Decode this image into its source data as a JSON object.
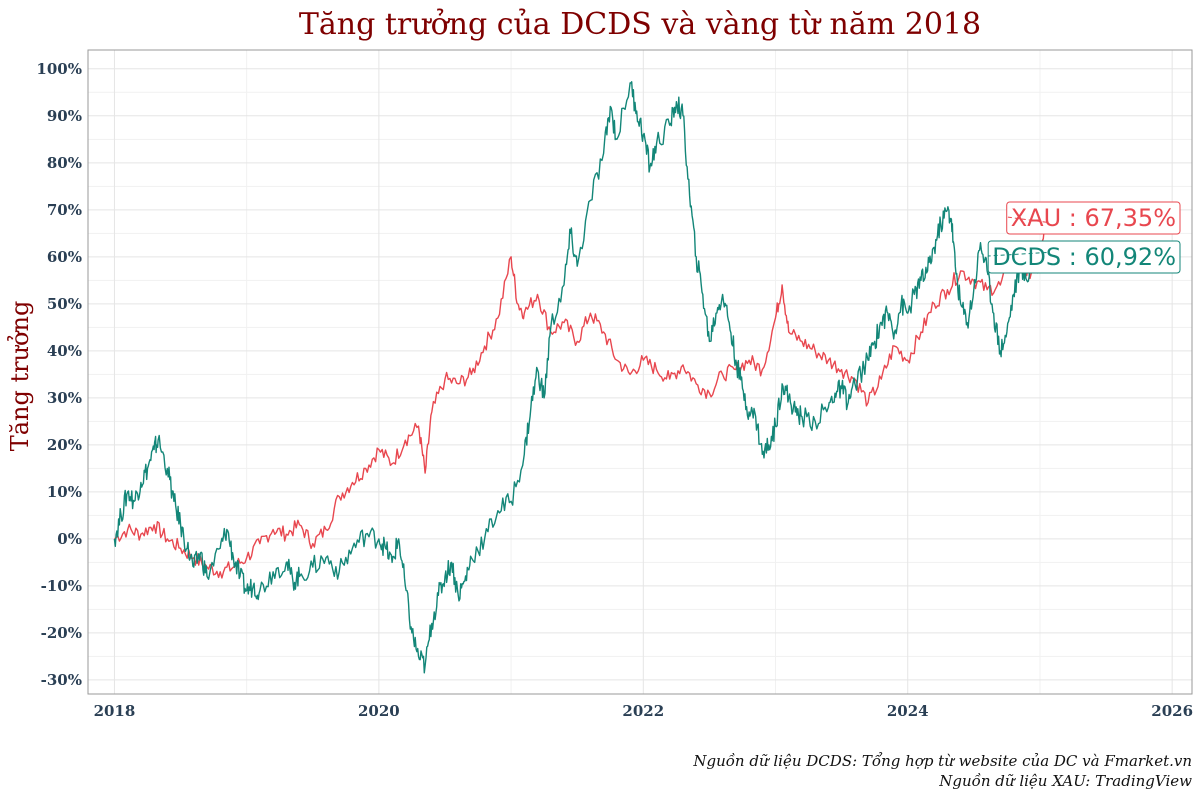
{
  "chart_data": {
    "type": "line",
    "title": "Tăng trưởng của DCDS và vàng từ năm 2018",
    "ylabel": "Tăng trưởng",
    "xlabel": "",
    "xlim": [
      2017.8,
      2026.15
    ],
    "ylim": [
      -33,
      104
    ],
    "x_ticks": [
      2018,
      2020,
      2022,
      2024,
      2026
    ],
    "y_ticks": [
      -30,
      -20,
      -10,
      0,
      10,
      20,
      30,
      40,
      50,
      60,
      70,
      80,
      90,
      100
    ],
    "y_tick_labels": [
      "-30%",
      "-20%",
      "-10%",
      "0%",
      "10%",
      "20%",
      "30%",
      "40%",
      "50%",
      "60%",
      "70%",
      "80%",
      "90%",
      "100%"
    ],
    "grid": true,
    "series": [
      {
        "name": "XAU",
        "color": "#e8474f",
        "end_label": "XAU : 67,35%",
        "points": [
          [
            2018.0,
            0
          ],
          [
            2018.1,
            2
          ],
          [
            2018.2,
            1
          ],
          [
            2018.3,
            3
          ],
          [
            2018.4,
            0
          ],
          [
            2018.5,
            -2
          ],
          [
            2018.6,
            -4
          ],
          [
            2018.7,
            -6
          ],
          [
            2018.8,
            -7
          ],
          [
            2018.9,
            -6
          ],
          [
            2019.0,
            -4
          ],
          [
            2019.1,
            -1
          ],
          [
            2019.2,
            2
          ],
          [
            2019.3,
            1
          ],
          [
            2019.4,
            3
          ],
          [
            2019.5,
            -1
          ],
          [
            2019.6,
            2
          ],
          [
            2019.7,
            9
          ],
          [
            2019.8,
            12
          ],
          [
            2019.9,
            15
          ],
          [
            2020.0,
            19
          ],
          [
            2020.1,
            16
          ],
          [
            2020.2,
            21
          ],
          [
            2020.3,
            24
          ],
          [
            2020.35,
            14
          ],
          [
            2020.4,
            27
          ],
          [
            2020.5,
            34
          ],
          [
            2020.6,
            33
          ],
          [
            2020.7,
            35
          ],
          [
            2020.8,
            41
          ],
          [
            2020.9,
            47
          ],
          [
            2021.0,
            60
          ],
          [
            2021.05,
            50
          ],
          [
            2021.1,
            48
          ],
          [
            2021.2,
            52
          ],
          [
            2021.3,
            44
          ],
          [
            2021.4,
            46
          ],
          [
            2021.5,
            42
          ],
          [
            2021.6,
            48
          ],
          [
            2021.7,
            44
          ],
          [
            2021.8,
            38
          ],
          [
            2021.9,
            35
          ],
          [
            2022.0,
            38
          ],
          [
            2022.1,
            36
          ],
          [
            2022.2,
            34
          ],
          [
            2022.3,
            37
          ],
          [
            2022.4,
            33
          ],
          [
            2022.5,
            31
          ],
          [
            2022.6,
            35
          ],
          [
            2022.7,
            36
          ],
          [
            2022.8,
            38
          ],
          [
            2022.9,
            36
          ],
          [
            2023.0,
            47
          ],
          [
            2023.05,
            54
          ],
          [
            2023.1,
            44
          ],
          [
            2023.2,
            42
          ],
          [
            2023.3,
            40
          ],
          [
            2023.4,
            38
          ],
          [
            2023.5,
            36
          ],
          [
            2023.6,
            34
          ],
          [
            2023.7,
            29
          ],
          [
            2023.8,
            34
          ],
          [
            2023.9,
            41
          ],
          [
            2024.0,
            38
          ],
          [
            2024.1,
            44
          ],
          [
            2024.2,
            50
          ],
          [
            2024.3,
            53
          ],
          [
            2024.4,
            57
          ],
          [
            2024.5,
            55
          ],
          [
            2024.6,
            53
          ],
          [
            2024.7,
            54
          ],
          [
            2024.8,
            61
          ],
          [
            2024.9,
            56
          ],
          [
            2025.0,
            60
          ],
          [
            2025.05,
            67.35
          ]
        ]
      },
      {
        "name": "DCDS",
        "color": "#138678",
        "end_label": "DCDS : 60,92%",
        "points": [
          [
            2018.0,
            0
          ],
          [
            2018.05,
            5
          ],
          [
            2018.1,
            10
          ],
          [
            2018.15,
            8
          ],
          [
            2018.2,
            12
          ],
          [
            2018.25,
            15
          ],
          [
            2018.3,
            19
          ],
          [
            2018.33,
            21
          ],
          [
            2018.4,
            15
          ],
          [
            2018.45,
            8
          ],
          [
            2018.5,
            3
          ],
          [
            2018.55,
            -2
          ],
          [
            2018.6,
            -6
          ],
          [
            2018.65,
            -3
          ],
          [
            2018.7,
            -8
          ],
          [
            2018.8,
            -2
          ],
          [
            2018.85,
            2
          ],
          [
            2018.9,
            -4
          ],
          [
            2018.95,
            -8
          ],
          [
            2019.0,
            -11
          ],
          [
            2019.05,
            -10
          ],
          [
            2019.1,
            -11
          ],
          [
            2019.2,
            -7
          ],
          [
            2019.3,
            -5
          ],
          [
            2019.35,
            -9
          ],
          [
            2019.4,
            -8
          ],
          [
            2019.5,
            -6
          ],
          [
            2019.6,
            -4
          ],
          [
            2019.7,
            -7
          ],
          [
            2019.8,
            -2
          ],
          [
            2019.9,
            1
          ],
          [
            2020.0,
            0
          ],
          [
            2020.05,
            -2
          ],
          [
            2020.1,
            -5
          ],
          [
            2020.15,
            0
          ],
          [
            2020.2,
            -10
          ],
          [
            2020.25,
            -20
          ],
          [
            2020.3,
            -25
          ],
          [
            2020.35,
            -27
          ],
          [
            2020.4,
            -18
          ],
          [
            2020.45,
            -12
          ],
          [
            2020.5,
            -8
          ],
          [
            2020.55,
            -5
          ],
          [
            2020.6,
            -12
          ],
          [
            2020.65,
            -9
          ],
          [
            2020.7,
            -4
          ],
          [
            2020.8,
            0
          ],
          [
            2020.9,
            6
          ],
          [
            2021.0,
            8
          ],
          [
            2021.1,
            18
          ],
          [
            2021.15,
            28
          ],
          [
            2021.2,
            36
          ],
          [
            2021.25,
            30
          ],
          [
            2021.3,
            45
          ],
          [
            2021.4,
            54
          ],
          [
            2021.45,
            65
          ],
          [
            2021.5,
            58
          ],
          [
            2021.6,
            72
          ],
          [
            2021.7,
            82
          ],
          [
            2021.75,
            92
          ],
          [
            2021.8,
            85
          ],
          [
            2021.9,
            97
          ],
          [
            2021.95,
            91
          ],
          [
            2022.0,
            86
          ],
          [
            2022.05,
            79
          ],
          [
            2022.1,
            84
          ],
          [
            2022.2,
            88
          ],
          [
            2022.25,
            93
          ],
          [
            2022.3,
            90
          ],
          [
            2022.35,
            73
          ],
          [
            2022.4,
            60
          ],
          [
            2022.45,
            52
          ],
          [
            2022.5,
            42
          ],
          [
            2022.55,
            48
          ],
          [
            2022.6,
            52
          ],
          [
            2022.65,
            46
          ],
          [
            2022.7,
            38
          ],
          [
            2022.75,
            32
          ],
          [
            2022.8,
            27
          ],
          [
            2022.85,
            26
          ],
          [
            2022.9,
            18
          ],
          [
            2022.95,
            20
          ],
          [
            2023.0,
            24
          ],
          [
            2023.05,
            33
          ],
          [
            2023.1,
            30
          ],
          [
            2023.15,
            27
          ],
          [
            2023.2,
            26
          ],
          [
            2023.3,
            25
          ],
          [
            2023.4,
            28
          ],
          [
            2023.45,
            31
          ],
          [
            2023.5,
            32
          ],
          [
            2023.55,
            29
          ],
          [
            2023.6,
            33
          ],
          [
            2023.7,
            38
          ],
          [
            2023.75,
            42
          ],
          [
            2023.8,
            46
          ],
          [
            2023.85,
            48
          ],
          [
            2023.9,
            44
          ],
          [
            2023.95,
            50
          ],
          [
            2024.0,
            48
          ],
          [
            2024.05,
            52
          ],
          [
            2024.1,
            55
          ],
          [
            2024.15,
            57
          ],
          [
            2024.2,
            62
          ],
          [
            2024.25,
            67
          ],
          [
            2024.3,
            70
          ],
          [
            2024.33,
            68
          ],
          [
            2024.36,
            58
          ],
          [
            2024.4,
            50
          ],
          [
            2024.45,
            46
          ],
          [
            2024.5,
            53
          ],
          [
            2024.55,
            63
          ],
          [
            2024.6,
            57
          ],
          [
            2024.65,
            48
          ],
          [
            2024.7,
            40
          ],
          [
            2024.75,
            44
          ],
          [
            2024.8,
            52
          ],
          [
            2024.85,
            58
          ],
          [
            2024.9,
            55
          ],
          [
            2024.95,
            60
          ],
          [
            2025.0,
            58
          ],
          [
            2025.05,
            60.92
          ]
        ]
      }
    ]
  },
  "sources": {
    "line1": "Nguồn dữ liệu DCDS: Tổng hợp từ website của DC và Fmarket.vn",
    "line2": "Nguồn dữ liệu XAU: TradingView"
  }
}
